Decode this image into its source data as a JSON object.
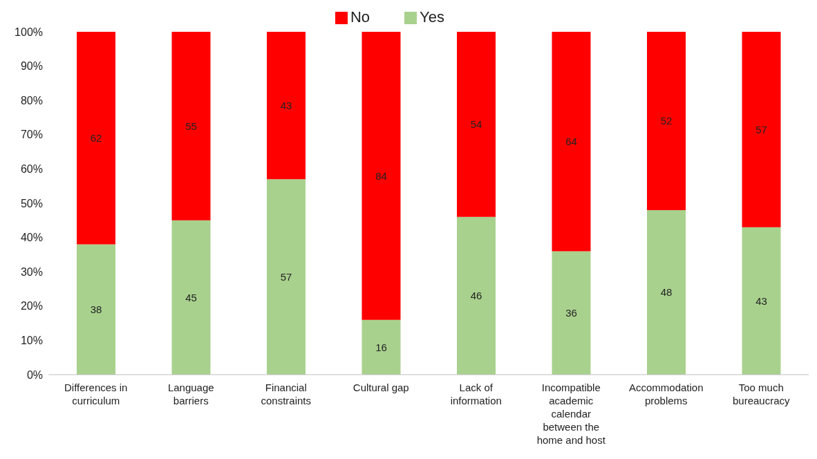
{
  "chart_data": {
    "type": "bar",
    "stacked": true,
    "legend": "top",
    "data_labels": true,
    "grid": false,
    "categories": [
      "Differences in curriculum",
      "Language barriers",
      "Financial constraints",
      "Cultural gap",
      "Lack of information",
      "Incompatible academic calendar between the home and host",
      "Accommodation problems",
      "Too much bureaucracy"
    ],
    "series": [
      {
        "name": "Yes",
        "color": "#a9d18e",
        "values": [
          38,
          45,
          57,
          16,
          46,
          36,
          48,
          43
        ]
      },
      {
        "name": "No",
        "color": "#ff0000",
        "values": [
          62,
          55,
          43,
          84,
          54,
          64,
          52,
          57
        ]
      }
    ],
    "ylim": [
      0,
      100
    ],
    "yticks": [
      {
        "value": 0,
        "label": "0%"
      },
      {
        "value": 10,
        "label": "10%"
      },
      {
        "value": 20,
        "label": "20%"
      },
      {
        "value": 30,
        "label": "30%"
      },
      {
        "value": 40,
        "label": "40%"
      },
      {
        "value": 50,
        "label": "50%"
      },
      {
        "value": 60,
        "label": "60%"
      },
      {
        "value": 70,
        "label": "70%"
      },
      {
        "value": 80,
        "label": "80%"
      },
      {
        "value": 90,
        "label": "90%"
      },
      {
        "value": 100,
        "label": "100%"
      }
    ]
  }
}
